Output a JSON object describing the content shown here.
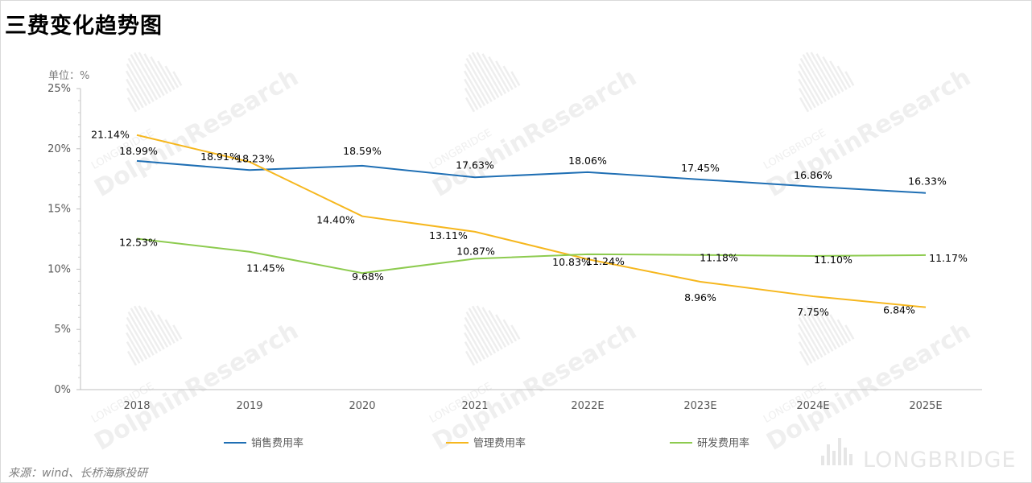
{
  "page": {
    "title": "三费变化趋势图",
    "unit_label": "单位：%",
    "source": "来源：wind、长桥海豚投研",
    "watermark_text": "DolphinResearch",
    "watermark_sub": "LONGBRIDGE",
    "brand_logo": "LONGBRIDGE"
  },
  "chart_data": {
    "type": "line",
    "categories": [
      "2018",
      "2019",
      "2020",
      "2021",
      "2022E",
      "2023E",
      "2024E",
      "2025E"
    ],
    "y_ticks": [
      "0%",
      "5%",
      "10%",
      "15%",
      "20%",
      "25%"
    ],
    "ylim": [
      0,
      25
    ],
    "grid": false,
    "legend_position": "bottom",
    "series": [
      {
        "name": "销售费用率",
        "color": "#1f6fb4",
        "values": [
          18.99,
          18.23,
          18.59,
          17.63,
          18.06,
          17.45,
          16.86,
          16.33
        ],
        "labels": [
          "18.99%",
          "18.23%",
          "18.59%",
          "17.63%",
          "18.06%",
          "17.45%",
          "16.86%",
          "16.33%"
        ]
      },
      {
        "name": "管理费用率",
        "color": "#f6b71e",
        "values": [
          21.14,
          18.91,
          14.4,
          13.11,
          10.83,
          8.96,
          7.75,
          6.84
        ],
        "labels": [
          "21.14%",
          "18.91%",
          "14.40%",
          "13.11%",
          "10.83%",
          "8.96%",
          "7.75%",
          "6.84%"
        ]
      },
      {
        "name": "研发费用率",
        "color": "#8dcb4f",
        "values": [
          12.53,
          11.45,
          9.68,
          10.87,
          11.24,
          11.18,
          11.1,
          11.17
        ],
        "labels": [
          "12.53%",
          "11.45%",
          "9.68%",
          "10.87%",
          "11.24%",
          "11.18%",
          "11.10%",
          "11.17%"
        ]
      }
    ]
  }
}
